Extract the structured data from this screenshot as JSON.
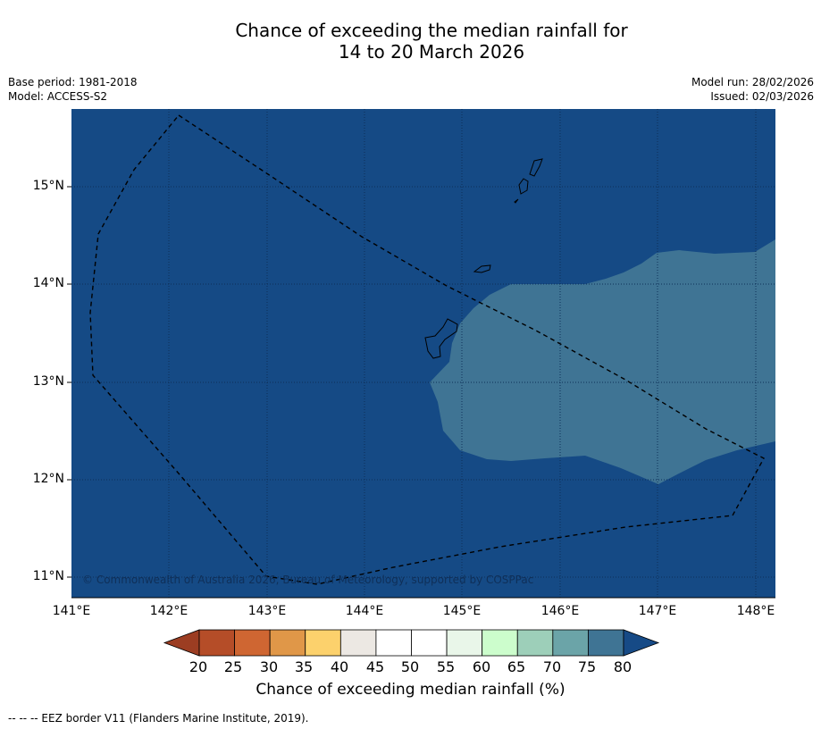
{
  "title": {
    "line1": "Chance of exceeding the median rainfall for",
    "line2": "14 to 20 March 2026"
  },
  "meta_left": {
    "base_period": "Base period: 1981-2018",
    "model": "Model: ACCESS-S2"
  },
  "meta_right": {
    "model_run": "Model run: 28/02/2026",
    "issued": "Issued: 02/03/2026"
  },
  "map": {
    "lat_ticks": [
      "15°N",
      "14°N",
      "13°N",
      "12°N",
      "11°N"
    ],
    "lon_ticks": [
      "141°E",
      "142°E",
      "143°E",
      "144°E",
      "145°E",
      "146°E",
      "147°E",
      "148°E"
    ],
    "copyright": "© Commonwealth of Australia 2026, Bureau of Meteorology, supported by COSPPac",
    "background_class": ">80%",
    "region_class": "75–80%",
    "colors": {
      "ocean_over_80": "#154a85",
      "band_75_80": "#3f7494",
      "gridline": "#0d2f57",
      "coast": "#000000"
    }
  },
  "colorbar": {
    "ticks": [
      "20",
      "25",
      "30",
      "35",
      "40",
      "45",
      "50",
      "55",
      "60",
      "65",
      "70",
      "75",
      "80"
    ],
    "label": "Chance of exceeding median rainfall (%)",
    "low_extend_color": "#9c3d22",
    "high_extend_color": "#164a86",
    "colors": [
      "#b54d28",
      "#cf6632",
      "#e09748",
      "#fcd16c",
      "#ece8e3",
      "#ffffff",
      "#ffffff",
      "#e9f6e9",
      "#ccfdcc",
      "#9dcfb9",
      "#6ba4a8",
      "#3f7494"
    ]
  },
  "footnote": "--  --  -- EEZ border V11 (Flanders Marine Institute, 2019)."
}
